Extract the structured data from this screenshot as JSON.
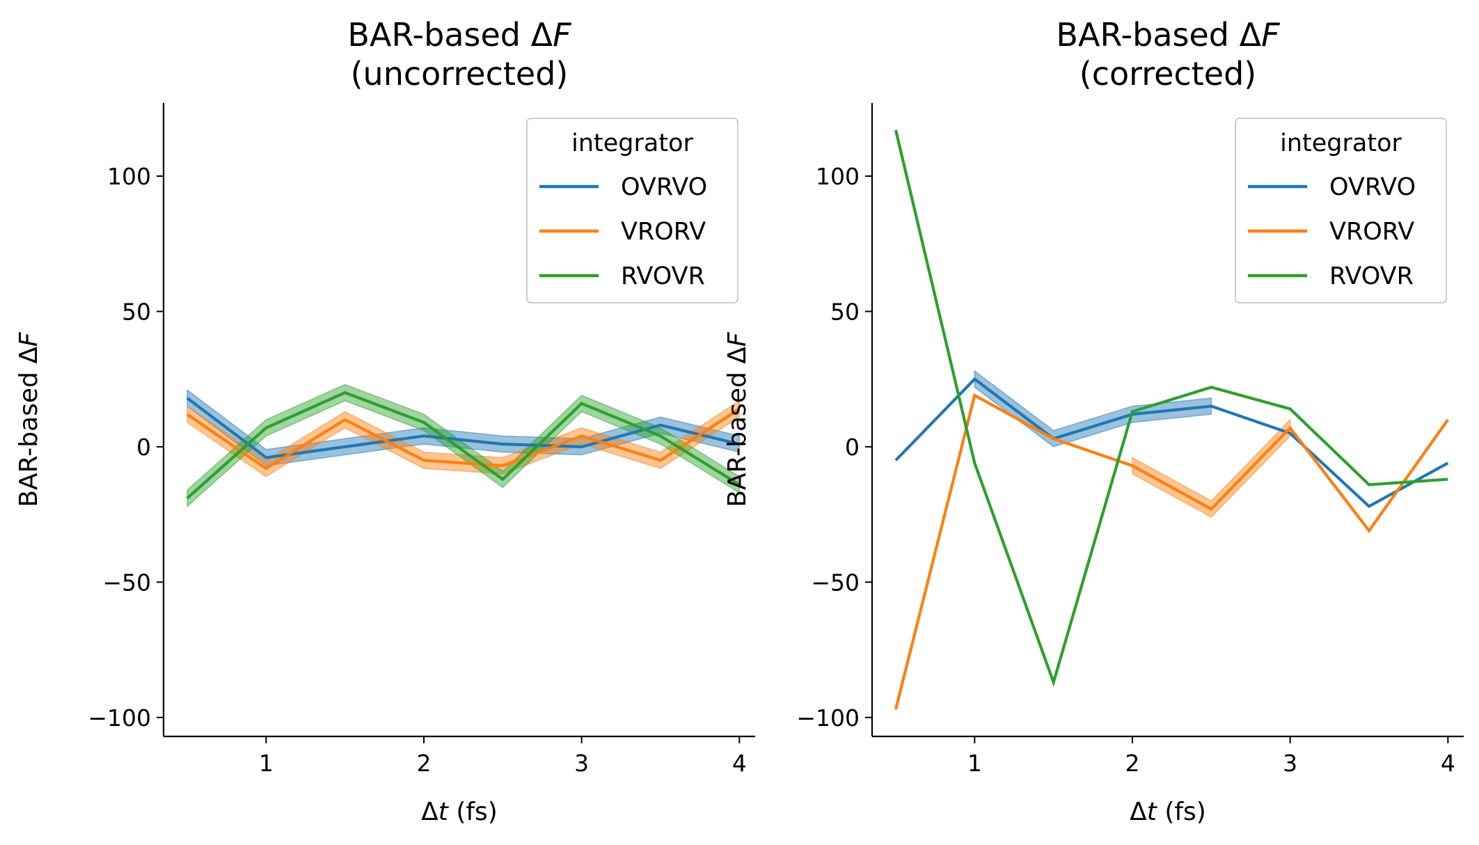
{
  "chart_data": [
    {
      "type": "line",
      "title": "BAR-based ΔF",
      "subtitle": "(uncorrected)",
      "xlabel": "Δt (fs)",
      "ylabel": "BAR-based ΔF",
      "xlim": [
        0.35,
        4.1
      ],
      "ylim": [
        -107,
        127
      ],
      "xticks": [
        1,
        2,
        3,
        4
      ],
      "yticks": [
        -100,
        -50,
        0,
        50,
        100
      ],
      "ytick_labels": [
        "−100",
        "−50",
        "0",
        "50",
        "100"
      ],
      "grid": false,
      "legend": {
        "title": "integrator",
        "position": "top-right"
      },
      "x": [
        0.5,
        1,
        1.5,
        2,
        2.5,
        3,
        3.5,
        4
      ],
      "series": [
        {
          "name": "OVRVO",
          "color": "#1f77b4",
          "values": [
            18,
            -4,
            0,
            4,
            1,
            0,
            8,
            1
          ],
          "band": 3
        },
        {
          "name": "VRORV",
          "color": "#ff7f0e",
          "values": [
            12,
            -8,
            10,
            -5,
            -7,
            4,
            -5,
            14
          ],
          "band": 3
        },
        {
          "name": "RVOVR",
          "color": "#2ca02c",
          "values": [
            -19,
            7,
            20,
            9,
            -12,
            16,
            4,
            -14
          ],
          "band": 3
        }
      ]
    },
    {
      "type": "line",
      "title": "BAR-based ΔF",
      "subtitle": "(corrected)",
      "xlabel": "Δt (fs)",
      "ylabel": "BAR-based ΔF",
      "xlim": [
        0.35,
        4.1
      ],
      "ylim": [
        -107,
        127
      ],
      "xticks": [
        1,
        2,
        3,
        4
      ],
      "yticks": [
        -100,
        -50,
        0,
        50,
        100
      ],
      "ytick_labels": [
        "−100",
        "−50",
        "0",
        "50",
        "100"
      ],
      "grid": false,
      "legend": {
        "title": "integrator",
        "position": "top-right"
      },
      "x": [
        0.5,
        1,
        1.5,
        2,
        2.5,
        3,
        3.5,
        4
      ],
      "series": [
        {
          "name": "OVRVO",
          "color": "#1f77b4",
          "values": [
            -5,
            25,
            3,
            12,
            15,
            5,
            -22,
            -6
          ],
          "band": 3,
          "band_range": [
            1,
            2.5
          ]
        },
        {
          "name": "VRORV",
          "color": "#ff7f0e",
          "values": [
            -97,
            19,
            3,
            -7,
            -23,
            7,
            -31,
            10
          ],
          "band": 3,
          "band_range": [
            2,
            3
          ]
        },
        {
          "name": "RVOVR",
          "color": "#2ca02c",
          "values": [
            117,
            -6,
            -87,
            13,
            22,
            14,
            -14,
            -12
          ],
          "band": 0
        }
      ]
    }
  ]
}
